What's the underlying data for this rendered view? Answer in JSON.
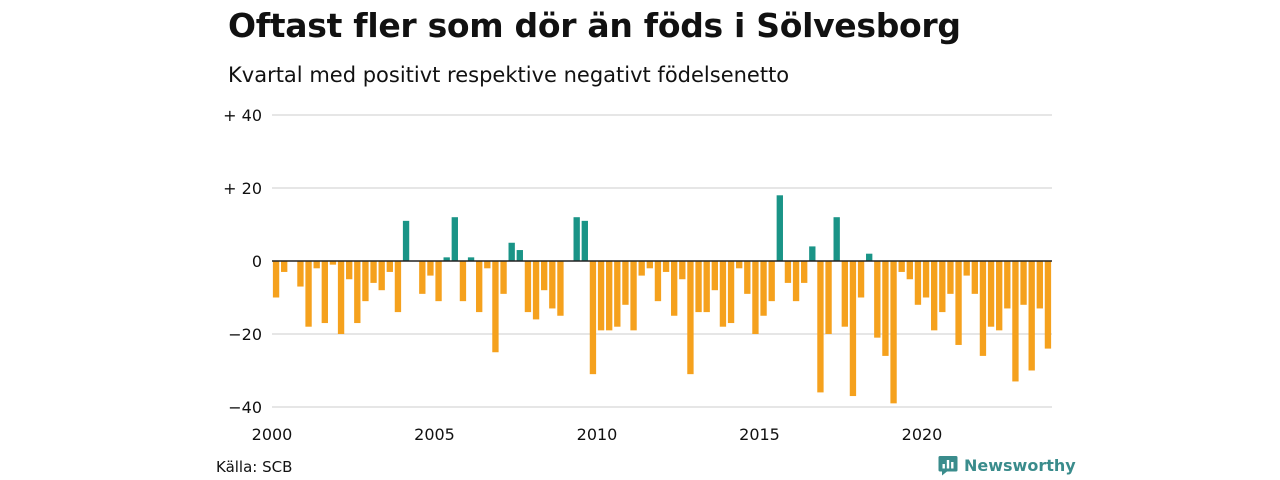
{
  "header": {
    "title": "Oftast fler som dör än föds i Sölvesborg",
    "subtitle": "Kvartal med positivt respektive negativt födelsenetto"
  },
  "footer": {
    "source": "Källa: SCB",
    "brand": "Newsworthy"
  },
  "colors": {
    "positive": "#1a9487",
    "negative": "#f5a11d",
    "grid": "#dddddd",
    "brand": "#3a8c8c"
  },
  "chart_data": {
    "type": "bar",
    "title": "Oftast fler som dör än föds i Sölvesborg",
    "subtitle": "Kvartal med positivt respektive negativt födelsenetto",
    "xlabel": "",
    "ylabel": "",
    "ylim": [
      -40,
      40
    ],
    "y_ticks": [
      {
        "value": 40,
        "label": "+ 40"
      },
      {
        "value": 20,
        "label": "+ 20"
      },
      {
        "value": 0,
        "label": "0"
      },
      {
        "value": -20,
        "label": "−20"
      },
      {
        "value": -40,
        "label": "−40"
      }
    ],
    "x_ticks": [
      "2000",
      "2005",
      "2010",
      "2015",
      "2020"
    ],
    "start_year": 2000,
    "grid": true,
    "legend": "none",
    "values": [
      -10,
      -3,
      0,
      -7,
      -18,
      -2,
      -17,
      -1,
      -20,
      -5,
      -17,
      -11,
      -6,
      -8,
      -3,
      -14,
      11,
      0,
      -9,
      -4,
      -11,
      1,
      12,
      -11,
      1,
      -14,
      -2,
      -25,
      -9,
      5,
      3,
      -14,
      -16,
      -8,
      -13,
      -15,
      0,
      12,
      11,
      -31,
      -19,
      -19,
      -18,
      -12,
      -19,
      -4,
      -2,
      -11,
      -3,
      -15,
      -5,
      -31,
      -14,
      -14,
      -8,
      -18,
      -17,
      -2,
      -9,
      -20,
      -15,
      -11,
      18,
      -6,
      -11,
      -6,
      4,
      -36,
      -20,
      12,
      -18,
      -37,
      -10,
      2,
      -21,
      -26,
      -39,
      -3,
      -5,
      -12,
      -10,
      -19,
      -14,
      -9,
      -23,
      -4,
      -9,
      -26,
      -18,
      -19,
      -13,
      -33,
      -12,
      -30,
      -13,
      -24
    ]
  }
}
